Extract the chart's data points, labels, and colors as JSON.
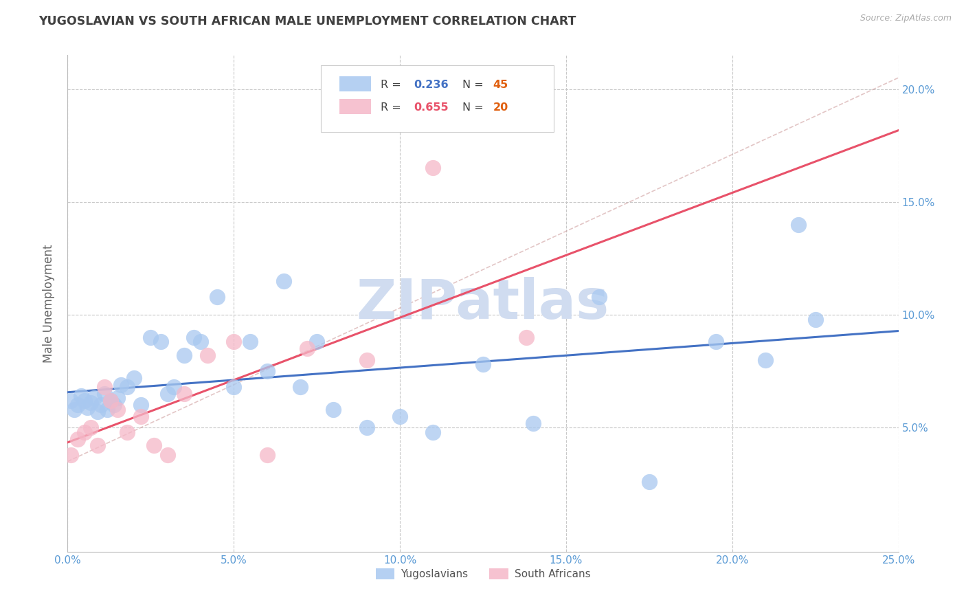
{
  "title": "YUGOSLAVIAN VS SOUTH AFRICAN MALE UNEMPLOYMENT CORRELATION CHART",
  "source": "Source: ZipAtlas.com",
  "ylabel": "Male Unemployment",
  "xlim": [
    0,
    0.25
  ],
  "ylim": [
    -0.005,
    0.215
  ],
  "blue_color": "#A8C8F0",
  "pink_color": "#F5B8C8",
  "blue_line_color": "#4472C4",
  "pink_line_color": "#E8526A",
  "ref_line_color": "#D0A0A0",
  "axis_label_color": "#5B9BD5",
  "title_color": "#404040",
  "watermark": "ZIPatlas",
  "watermark_color": "#D0DCF0",
  "legend_r_color": "#444444",
  "legend_blue_val_color": "#4472C4",
  "legend_pink_val_color": "#E8526A",
  "legend_n_color": "#E06010",
  "blue_dots_x": [
    0.001,
    0.002,
    0.003,
    0.004,
    0.005,
    0.006,
    0.007,
    0.008,
    0.009,
    0.01,
    0.011,
    0.012,
    0.013,
    0.014,
    0.015,
    0.016,
    0.018,
    0.02,
    0.022,
    0.025,
    0.028,
    0.03,
    0.032,
    0.035,
    0.038,
    0.04,
    0.045,
    0.05,
    0.055,
    0.06,
    0.065,
    0.07,
    0.075,
    0.08,
    0.09,
    0.1,
    0.11,
    0.125,
    0.14,
    0.16,
    0.175,
    0.195,
    0.21,
    0.22,
    0.225
  ],
  "blue_dots_y": [
    0.062,
    0.058,
    0.06,
    0.064,
    0.062,
    0.059,
    0.061,
    0.063,
    0.057,
    0.06,
    0.065,
    0.058,
    0.062,
    0.06,
    0.063,
    0.069,
    0.068,
    0.072,
    0.06,
    0.09,
    0.088,
    0.065,
    0.068,
    0.082,
    0.09,
    0.088,
    0.108,
    0.068,
    0.088,
    0.075,
    0.115,
    0.068,
    0.088,
    0.058,
    0.05,
    0.055,
    0.048,
    0.078,
    0.052,
    0.108,
    0.026,
    0.088,
    0.08,
    0.14,
    0.098
  ],
  "pink_dots_x": [
    0.001,
    0.003,
    0.005,
    0.007,
    0.009,
    0.011,
    0.013,
    0.015,
    0.018,
    0.022,
    0.026,
    0.03,
    0.035,
    0.042,
    0.05,
    0.06,
    0.072,
    0.09,
    0.11,
    0.138
  ],
  "pink_dots_y": [
    0.038,
    0.045,
    0.048,
    0.05,
    0.042,
    0.068,
    0.062,
    0.058,
    0.048,
    0.055,
    0.042,
    0.038,
    0.065,
    0.082,
    0.088,
    0.038,
    0.085,
    0.08,
    0.165,
    0.09
  ],
  "x_ticks": [
    0.0,
    0.05,
    0.1,
    0.15,
    0.2,
    0.25
  ],
  "y_ticks": [
    0.05,
    0.1,
    0.15,
    0.2
  ],
  "ref_line_x": [
    0.0,
    0.25
  ],
  "ref_line_y": [
    0.035,
    0.205
  ]
}
